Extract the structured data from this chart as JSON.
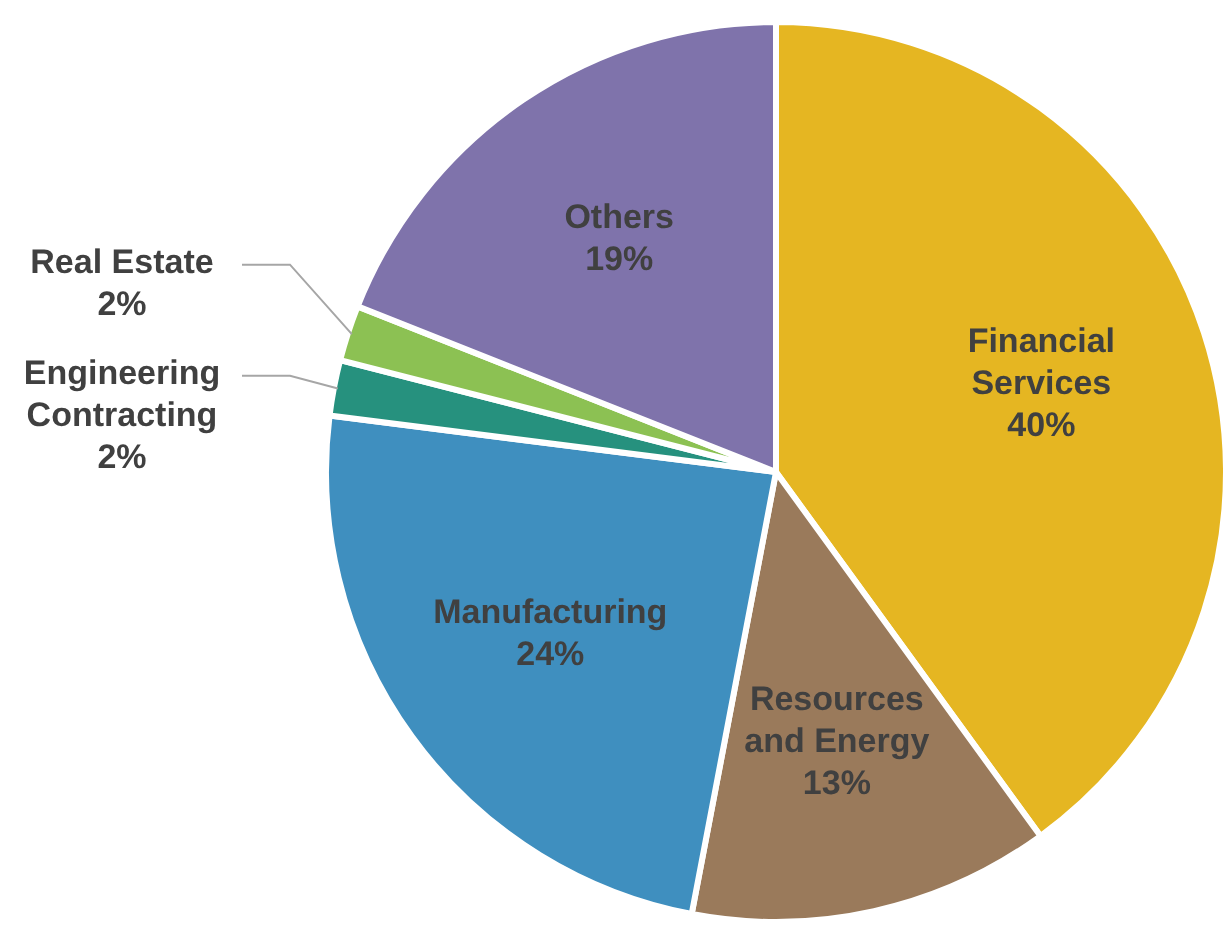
{
  "chart_data": {
    "type": "pie",
    "categories": [
      "Financial Services",
      "Resources and Energy",
      "Manufacturing",
      "Engineering Contracting",
      "Real Estate",
      "Others"
    ],
    "values": [
      40,
      13,
      24,
      2,
      2,
      19
    ],
    "value_labels": [
      "40%",
      "13%",
      "24%",
      "2%",
      "2%",
      "19%"
    ],
    "colors": [
      "#e5b622",
      "#9a7a5b",
      "#3f8fbf",
      "#26917e",
      "#8cc153",
      "#7f73ab"
    ]
  }
}
